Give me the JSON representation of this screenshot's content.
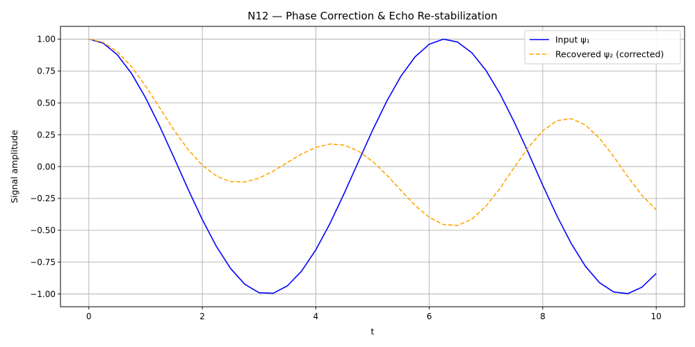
{
  "chart_data": {
    "type": "line",
    "title": "N12 — Phase Correction & Echo Re-stabilization",
    "xlabel": "t",
    "ylabel": "Signal amplitude",
    "xlim": [
      -0.5,
      10.5
    ],
    "ylim": [
      -1.1,
      1.1
    ],
    "x_ticks": [
      0,
      2,
      4,
      6,
      8,
      10
    ],
    "x_tick_labels": [
      "0",
      "2",
      "4",
      "6",
      "8",
      "10"
    ],
    "y_ticks": [
      1.0,
      0.75,
      0.5,
      0.25,
      0.0,
      -0.25,
      -0.5,
      -0.75,
      -1.0
    ],
    "y_tick_labels": [
      "1.00",
      "0.75",
      "0.50",
      "0.25",
      "0.00",
      "−0.25",
      "−0.50",
      "−0.75",
      "−1.00"
    ],
    "grid": true,
    "legend_position": "top-right",
    "series": [
      {
        "name": "Input ψ₁",
        "color": "#0000ff",
        "style": "solid",
        "x": [
          0,
          0.25,
          0.5,
          0.75,
          1.0,
          1.25,
          1.5,
          1.75,
          2.0,
          2.25,
          2.5,
          2.75,
          3.0,
          3.25,
          3.5,
          3.75,
          4.0,
          4.25,
          4.5,
          4.75,
          5.0,
          5.25,
          5.5,
          5.75,
          6.0,
          6.25,
          6.5,
          6.75,
          7.0,
          7.25,
          7.5,
          7.75,
          8.0,
          8.25,
          8.5,
          8.75,
          9.0,
          9.25,
          9.5,
          9.75,
          10.0
        ],
        "y": [
          1.0,
          0.969,
          0.878,
          0.732,
          0.54,
          0.315,
          0.071,
          -0.178,
          -0.416,
          -0.628,
          -0.801,
          -0.924,
          -0.99,
          -0.994,
          -0.936,
          -0.82,
          -0.654,
          -0.447,
          -0.211,
          0.037,
          0.284,
          0.512,
          0.709,
          0.861,
          0.96,
          0.9997,
          0.977,
          0.893,
          0.754,
          0.568,
          0.347,
          0.105,
          -0.146,
          -0.387,
          -0.602,
          -0.781,
          -0.911,
          -0.984,
          -0.997,
          -0.946,
          -0.839
        ]
      },
      {
        "name": "Recovered ψ₂ (corrected)",
        "color": "#ffa500",
        "style": "dashed",
        "x": [
          0,
          0.25,
          0.5,
          0.75,
          1.0,
          1.25,
          1.5,
          1.75,
          2.0,
          2.25,
          2.5,
          2.75,
          3.0,
          3.25,
          3.5,
          3.75,
          4.0,
          4.25,
          4.5,
          4.75,
          5.0,
          5.25,
          5.5,
          5.75,
          6.0,
          6.25,
          6.5,
          6.75,
          7.0,
          7.25,
          7.5,
          7.75,
          8.0,
          8.25,
          8.5,
          8.75,
          9.0,
          9.25,
          9.5,
          9.75,
          10.0
        ],
        "y": [
          1.0,
          0.975,
          0.902,
          0.785,
          0.632,
          0.46,
          0.287,
          0.133,
          0.01,
          -0.075,
          -0.118,
          -0.121,
          -0.091,
          -0.036,
          0.032,
          0.099,
          0.15,
          0.177,
          0.168,
          0.122,
          0.041,
          -0.066,
          -0.187,
          -0.304,
          -0.399,
          -0.455,
          -0.462,
          -0.413,
          -0.311,
          -0.169,
          -0.006,
          0.152,
          0.281,
          0.36,
          0.376,
          0.327,
          0.222,
          0.079,
          -0.08,
          -0.227,
          -0.339
        ]
      }
    ]
  }
}
